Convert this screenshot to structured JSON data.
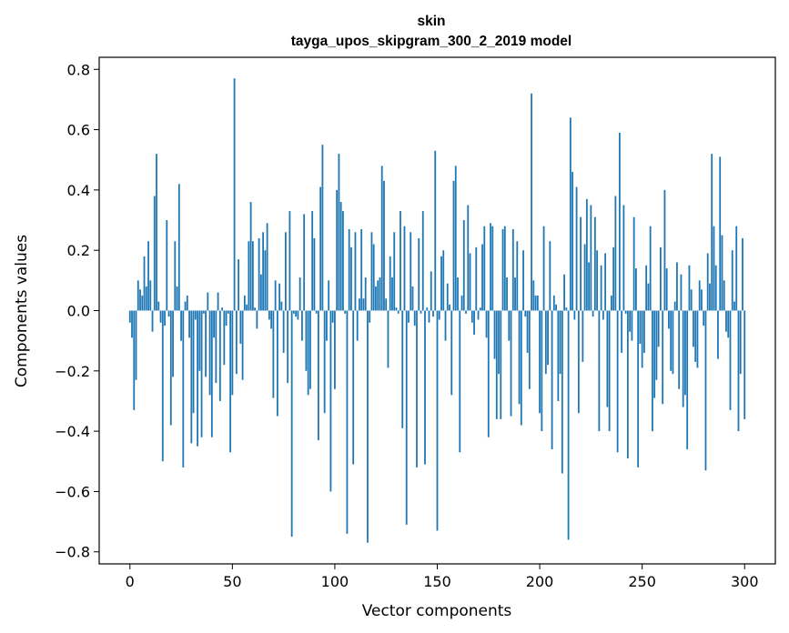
{
  "chart_data": {
    "type": "bar",
    "title": "skin",
    "subtitle": "tayga_upos_skipgram_300_2_2019 model",
    "xlabel": "Vector components",
    "ylabel": "Components values",
    "xlim": [
      -15,
      315
    ],
    "ylim": [
      -0.84,
      0.84
    ],
    "xticks": [
      0,
      50,
      100,
      150,
      200,
      250,
      300
    ],
    "xtick_labels": [
      "0",
      "50",
      "100",
      "150",
      "200",
      "250",
      "300"
    ],
    "yticks": [
      -0.8,
      -0.6,
      -0.4,
      -0.2,
      0.0,
      0.2,
      0.4,
      0.6,
      0.8
    ],
    "ytick_labels": [
      "−0.8",
      "−0.6",
      "−0.4",
      "−0.2",
      "0.0",
      "0.2",
      "0.4",
      "0.6",
      "0.8"
    ],
    "grid": false,
    "bar_color": "#1f77b4",
    "values": [
      -0.04,
      -0.09,
      -0.33,
      -0.23,
      0.1,
      0.07,
      0.05,
      0.18,
      0.08,
      0.23,
      0.1,
      -0.07,
      0.38,
      0.52,
      0.03,
      -0.04,
      -0.5,
      -0.05,
      0.3,
      -0.02,
      -0.38,
      -0.22,
      0.23,
      0.08,
      0.42,
      -0.1,
      -0.52,
      0.03,
      0.05,
      -0.09,
      -0.44,
      -0.34,
      -0.03,
      -0.45,
      -0.2,
      -0.42,
      -0.01,
      -0.22,
      0.06,
      -0.28,
      -0.42,
      -0.09,
      -0.24,
      0.06,
      -0.3,
      0.01,
      -0.18,
      -0.05,
      -0.01,
      -0.47,
      -0.28,
      0.77,
      -0.21,
      0.17,
      -0.11,
      -0.23,
      0.05,
      0.02,
      0.23,
      0.36,
      0.23,
      0.01,
      -0.06,
      0.24,
      0.12,
      0.26,
      0.2,
      0.29,
      -0.03,
      -0.06,
      -0.29,
      0.1,
      -0.35,
      0.09,
      0.03,
      -0.14,
      0.26,
      -0.24,
      0.33,
      -0.75,
      -0.01,
      -0.02,
      -0.03,
      0.11,
      -0.1,
      0.32,
      -0.2,
      -0.28,
      -0.26,
      0.33,
      0.24,
      -0.01,
      -0.43,
      0.41,
      0.55,
      -0.34,
      -0.1,
      0.1,
      -0.6,
      -0.04,
      -0.26,
      0.4,
      0.52,
      0.36,
      0.33,
      -0.01,
      -0.74,
      0.27,
      0.21,
      -0.51,
      0.26,
      -0.1,
      0.04,
      0.27,
      0.04,
      0.11,
      -0.77,
      -0.04,
      0.26,
      0.22,
      0.08,
      0.1,
      0.11,
      0.48,
      0.43,
      0.04,
      -0.19,
      0.18,
      0.11,
      0.26,
      0.01,
      -0.01,
      0.33,
      -0.39,
      0.28,
      -0.71,
      -0.04,
      0.26,
      0.08,
      -0.05,
      -0.52,
      0.24,
      -0.01,
      0.33,
      -0.51,
      0.01,
      -0.04,
      0.13,
      -0.02,
      0.53,
      -0.73,
      -0.03,
      0.18,
      0.2,
      -0.1,
      0.09,
      0.02,
      -0.28,
      0.43,
      0.48,
      0.11,
      -0.47,
      0.05,
      0.3,
      -0.01,
      0.35,
      0.19,
      -0.04,
      -0.08,
      0.21,
      -0.03,
      0.01,
      0.22,
      0.28,
      -0.09,
      -0.42,
      0.29,
      0.28,
      -0.16,
      -0.36,
      -0.21,
      -0.36,
      0.27,
      0.28,
      0.11,
      -0.1,
      -0.35,
      0.27,
      0.11,
      0.23,
      -0.31,
      -0.38,
      0.2,
      -0.02,
      -0.14,
      -0.26,
      0.72,
      0.1,
      0.05,
      0.05,
      -0.34,
      -0.4,
      0.28,
      -0.21,
      -0.18,
      0.23,
      -0.46,
      0.05,
      0.02,
      -0.3,
      -0.21,
      -0.54,
      0.12,
      0.01,
      -0.76,
      0.64,
      0.46,
      -0.03,
      0.41,
      -0.34,
      0.31,
      -0.17,
      0.22,
      0.37,
      0.16,
      0.35,
      -0.02,
      0.31,
      0.2,
      -0.4,
      0.15,
      -0.03,
      0.19,
      -0.32,
      -0.4,
      0.05,
      0.21,
      0.38,
      -0.47,
      0.59,
      -0.14,
      0.35,
      -0.01,
      -0.49,
      -0.07,
      -0.1,
      0.31,
      0.14,
      -0.52,
      -0.11,
      -0.19,
      -0.14,
      0.15,
      0.09,
      0.28,
      -0.4,
      -0.29,
      -0.23,
      -0.12,
      0.21,
      -0.31,
      0.4,
      0.14,
      -0.06,
      -0.2,
      -0.21,
      0.03,
      0.16,
      -0.26,
      0.12,
      -0.32,
      -0.28,
      -0.46,
      0.15,
      0.07,
      -0.12,
      -0.17,
      -0.19,
      0.1,
      0.07,
      -0.05,
      -0.53,
      0.19,
      0.09,
      0.52,
      0.28,
      0.15,
      -0.16,
      0.51,
      0.25,
      0.1,
      -0.07,
      -0.09,
      -0.33,
      0.2,
      0.03,
      0.28,
      -0.4,
      -0.21,
      0.24,
      -0.36
    ]
  }
}
